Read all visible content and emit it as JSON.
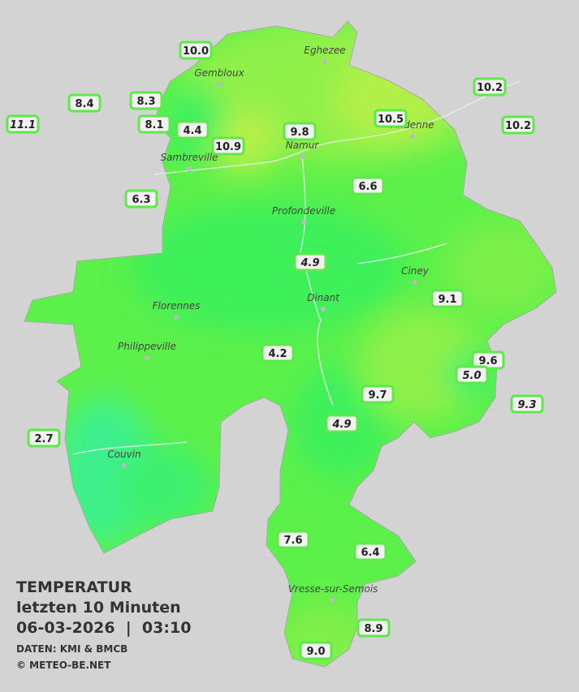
{
  "title": "TEMPERATUR",
  "subtitle": "letzten 10 Minuten",
  "datetime": "06-03-2026  |  03:10",
  "source": "DATEN: KMI & BMCB",
  "copyright": "© METEO-BE.NET",
  "towns": [
    "Eghezee",
    "Gembloux",
    "Andenne",
    "Namur",
    "Sambreville",
    "Profondeville",
    "Ciney",
    "Dinant",
    "Florennes",
    "Philippeville",
    "Couvin",
    "Vresse-sur-Semois"
  ],
  "stations": [
    "10.0",
    "8.4",
    "8.3",
    "11.1",
    "8.1",
    "4.4",
    "10.9",
    "9.8",
    "10.5",
    "10.2",
    "10.2",
    "6.3",
    "6.6",
    "4.9",
    "9.1",
    "4.2",
    "9.6",
    "5.0",
    "9.7",
    "9.3",
    "4.9",
    "2.7",
    "7.6",
    "6.4",
    "8.9",
    "9.0"
  ]
}
